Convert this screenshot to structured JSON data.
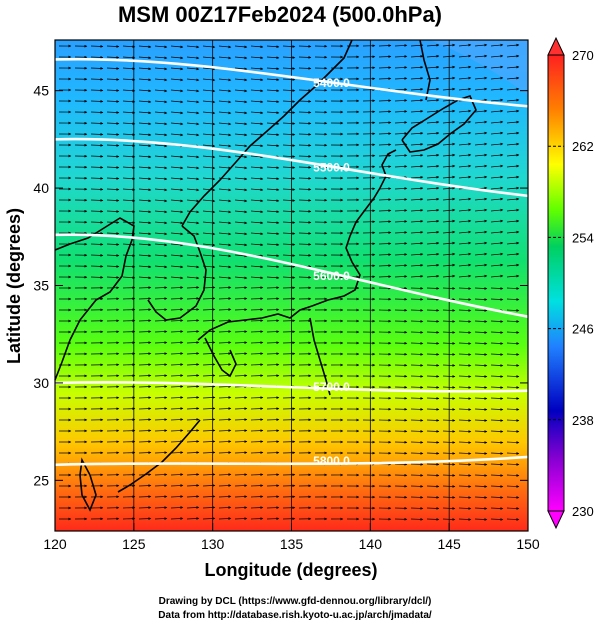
{
  "title": "MSM 00Z17Feb2024 (500.0hPa)",
  "axes": {
    "xlabel": "Longitude (degrees)",
    "ylabel": "Latitude  (degrees)",
    "xlim": [
      120,
      150
    ],
    "ylim": [
      22.4,
      47.6
    ],
    "xticks": [
      "120",
      "125",
      "130",
      "135",
      "140",
      "145",
      "150"
    ],
    "yticks": [
      "25",
      "30",
      "35",
      "40",
      "45"
    ]
  },
  "colorbar": {
    "ticks": [
      "230",
      "238",
      "246",
      "254",
      "262",
      "270"
    ],
    "min": 230,
    "max": 270
  },
  "contours": [
    {
      "label": "5400.0",
      "lat_west": 46.6,
      "lat_east": 44.2
    },
    {
      "label": "5500.0",
      "lat_west": 42.5,
      "lat_east": 39.6
    },
    {
      "label": "5600.0",
      "lat_west": 37.6,
      "lat_east": 33.4
    },
    {
      "label": "5700.0",
      "lat_west": 30.0,
      "lat_east": 29.6
    },
    {
      "label": "5800.0",
      "lat_west": 25.8,
      "lat_east": 26.2
    }
  ],
  "credits": {
    "line1": "Drawing by DCL (https://www.gfd-dennou.org/library/dcl/)",
    "line2": "Data from http://database.rish.kyoto-u.ac.jp/arch/jmadata/"
  },
  "colors": {
    "cold": "#ff00ff",
    "warm": "#ff2020",
    "contour": "#ffffff",
    "vectors": "#000000"
  }
}
